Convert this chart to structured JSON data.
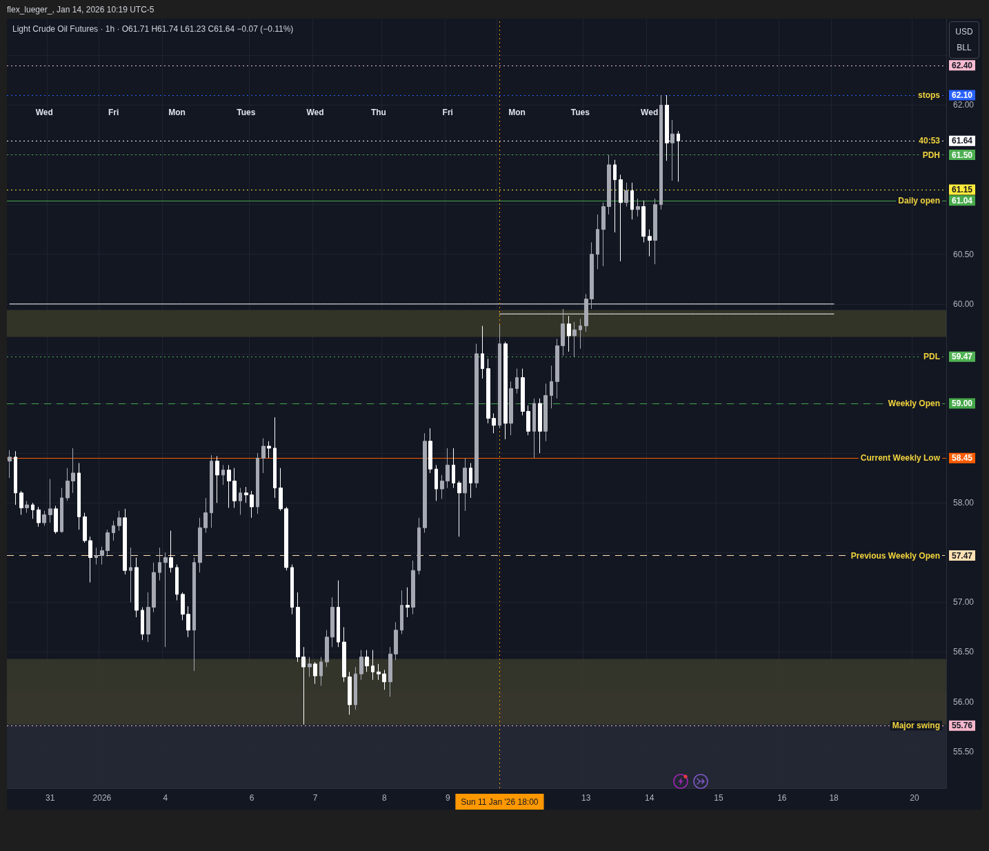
{
  "chart_data": {
    "type": "candlestick",
    "subtitle": "flex_lueger_, Jan 14, 2026 10:19 UTC-5",
    "title": "Light Crude Oil Futures · 1h · O61.71 H61.74 L61.23 C61.64 −0.07 (−0.11%)",
    "ylabel": "USD BLL",
    "annotations": [
      "Wed",
      "Fri",
      "Mon",
      "Tues",
      "Wed",
      "Thu",
      "Fri",
      "Mon",
      "Tues",
      "Wed",
      {
        "text": "stops",
        "y": 62.1
      },
      {
        "text": "40:53",
        "y": 61.64
      },
      {
        "text": "PDH",
        "y": 61.5
      },
      {
        "text": "Daily open",
        "y": 61.04
      },
      {
        "text": "PDL",
        "y": 59.47
      },
      {
        "text": "Weekly Open",
        "y": 59.0
      },
      {
        "text": "Current Weekly Low",
        "y": 58.45
      },
      {
        "text": "Previous Weekly Open",
        "y": 57.47
      },
      {
        "text": "Major swing",
        "y": 55.76
      }
    ],
    "categories": [
      null,
      null,
      null,
      null,
      null,
      null,
      null,
      "31",
      null,
      null,
      null,
      null,
      null,
      null,
      null,
      null,
      "2026",
      null,
      null,
      null,
      null,
      null,
      null,
      null,
      null,
      null,
      null,
      "4",
      null,
      null,
      null,
      null,
      null,
      null,
      null,
      null,
      null,
      null,
      null,
      null,
      null,
      null,
      "6",
      null,
      null,
      null,
      null,
      null,
      null,
      null,
      null,
      null,
      null,
      "7",
      null,
      null,
      null,
      null,
      null,
      null,
      null,
      null,
      null,
      null,
      null,
      "8",
      null,
      null,
      null,
      null,
      null,
      null,
      null,
      null,
      null,
      null,
      "9",
      null,
      null,
      null,
      null,
      null,
      null,
      null,
      null,
      "Sun 11 Jan '26 18:00",
      null,
      null,
      null,
      null,
      null,
      null,
      null,
      null,
      null,
      null,
      null,
      null,
      null,
      null,
      "13",
      null,
      null,
      null,
      null,
      null,
      null,
      null,
      null,
      null,
      null,
      "14",
      null,
      null,
      null,
      null,
      null,
      null,
      null,
      null,
      null,
      null,
      null,
      "15",
      null,
      null,
      null,
      null,
      null,
      null,
      null,
      null,
      null,
      null,
      "16",
      null,
      null,
      null,
      null,
      null,
      null,
      null,
      null,
      "18",
      null,
      null,
      null,
      null,
      null,
      null,
      null,
      null,
      null,
      null,
      null,
      null,
      null,
      "20",
      null,
      null,
      null,
      null,
      null
    ],
    "ohlc": [
      [
        58.42,
        58.53,
        58.25,
        58.46
      ],
      [
        58.46,
        58.52,
        57.98,
        58.1
      ],
      [
        58.1,
        58.12,
        57.88,
        57.95
      ],
      [
        57.95,
        58.02,
        57.9,
        57.98
      ],
      [
        57.98,
        58.0,
        57.84,
        57.93
      ],
      [
        57.93,
        57.96,
        57.76,
        57.8
      ],
      [
        57.8,
        57.92,
        57.77,
        57.88
      ],
      [
        57.88,
        58.24,
        57.8,
        57.94
      ],
      [
        57.94,
        57.97,
        57.69,
        57.71
      ],
      [
        57.71,
        58.15,
        57.7,
        58.05
      ],
      [
        58.05,
        58.35,
        58.02,
        58.22
      ],
      [
        58.22,
        58.55,
        58.1,
        58.3
      ],
      [
        58.3,
        58.4,
        57.73,
        57.86
      ],
      [
        57.86,
        57.9,
        57.6,
        57.62
      ],
      [
        57.62,
        57.66,
        57.2,
        57.45
      ],
      [
        57.45,
        57.55,
        57.38,
        57.47
      ],
      [
        57.47,
        57.56,
        57.38,
        57.52
      ],
      [
        57.52,
        57.73,
        57.46,
        57.7
      ],
      [
        57.7,
        57.82,
        57.62,
        57.77
      ],
      [
        57.77,
        57.92,
        57.72,
        57.85
      ],
      [
        57.85,
        57.94,
        57.28,
        57.32
      ],
      [
        57.32,
        57.55,
        57.0,
        57.35
      ],
      [
        57.35,
        57.45,
        56.85,
        56.92
      ],
      [
        56.92,
        56.95,
        56.62,
        56.68
      ],
      [
        56.68,
        57.1,
        56.6,
        56.95
      ],
      [
        56.95,
        57.4,
        56.9,
        57.3
      ],
      [
        57.3,
        57.55,
        57.22,
        57.4
      ],
      [
        57.4,
        57.5,
        56.55,
        57.45
      ],
      [
        57.45,
        57.72,
        57.3,
        57.35
      ],
      [
        57.35,
        57.38,
        57.02,
        57.08
      ],
      [
        57.08,
        57.1,
        56.82,
        56.88
      ],
      [
        56.88,
        56.96,
        56.65,
        56.72
      ],
      [
        56.72,
        57.45,
        56.31,
        57.4
      ],
      [
        57.4,
        57.85,
        57.3,
        57.75
      ],
      [
        57.75,
        58.05,
        57.7,
        57.9
      ],
      [
        57.9,
        58.48,
        57.75,
        58.42
      ],
      [
        58.42,
        58.47,
        58.0,
        58.28
      ],
      [
        58.28,
        58.38,
        58.18,
        58.33
      ],
      [
        58.33,
        58.38,
        57.95,
        58.22
      ],
      [
        58.22,
        58.35,
        57.95,
        58.02
      ],
      [
        58.02,
        58.15,
        57.88,
        58.1
      ],
      [
        58.1,
        58.16,
        58.0,
        58.08
      ],
      [
        58.08,
        58.12,
        57.85,
        57.96
      ],
      [
        57.96,
        58.5,
        57.89,
        58.45
      ],
      [
        58.45,
        58.65,
        58.3,
        58.57
      ],
      [
        58.57,
        58.62,
        58.45,
        58.55
      ],
      [
        58.55,
        58.86,
        58.05,
        58.15
      ],
      [
        58.15,
        58.35,
        57.92,
        57.94
      ],
      [
        57.94,
        57.96,
        57.32,
        57.35
      ],
      [
        57.35,
        57.38,
        56.88,
        56.95
      ],
      [
        56.95,
        57.1,
        56.4,
        56.45
      ],
      [
        56.45,
        56.55,
        55.77,
        56.35
      ],
      [
        56.35,
        56.45,
        56.25,
        56.38
      ],
      [
        56.38,
        56.4,
        56.18,
        56.26
      ],
      [
        56.26,
        56.45,
        56.16,
        56.4
      ],
      [
        56.4,
        56.72,
        56.35,
        56.65
      ],
      [
        56.65,
        57.05,
        56.55,
        56.95
      ],
      [
        56.95,
        57.22,
        56.55,
        56.6
      ],
      [
        56.6,
        56.75,
        56.2,
        56.25
      ],
      [
        56.25,
        56.3,
        55.87,
        55.97
      ],
      [
        55.97,
        56.35,
        55.92,
        56.28
      ],
      [
        56.28,
        56.52,
        56.22,
        56.45
      ],
      [
        56.45,
        56.52,
        56.3,
        56.36
      ],
      [
        56.36,
        56.52,
        56.22,
        56.3
      ],
      [
        56.3,
        56.38,
        56.22,
        56.28
      ],
      [
        56.28,
        56.32,
        56.12,
        56.2
      ],
      [
        56.2,
        56.55,
        56.05,
        56.48
      ],
      [
        56.48,
        56.8,
        56.42,
        56.72
      ],
      [
        56.72,
        57.12,
        56.68,
        56.97
      ],
      [
        56.97,
        57.15,
        56.85,
        56.95
      ],
      [
        56.95,
        57.42,
        56.88,
        57.32
      ],
      [
        57.32,
        57.85,
        57.28,
        57.75
      ],
      [
        57.75,
        58.7,
        57.7,
        58.62
      ],
      [
        58.62,
        58.75,
        58.3,
        58.34
      ],
      [
        58.34,
        58.38,
        58.02,
        58.14
      ],
      [
        58.14,
        58.28,
        58.04,
        58.22
      ],
      [
        58.22,
        58.55,
        58.15,
        58.38
      ],
      [
        58.38,
        58.55,
        58.15,
        58.2
      ],
      [
        58.2,
        58.22,
        57.66,
        58.1
      ],
      [
        58.1,
        58.45,
        57.92,
        58.35
      ],
      [
        58.35,
        58.4,
        58.05,
        58.2
      ],
      [
        58.2,
        59.6,
        58.15,
        59.5
      ],
      [
        59.5,
        59.78,
        59.25,
        59.35
      ],
      [
        59.35,
        59.45,
        58.8,
        58.85
      ],
      [
        58.85,
        58.9,
        58.7,
        58.78
      ],
      [
        58.78,
        59.79,
        58.75,
        59.6
      ],
      [
        59.6,
        59.62,
        58.64,
        58.8
      ],
      [
        58.8,
        59.22,
        58.68,
        59.15
      ],
      [
        59.15,
        59.35,
        59.1,
        59.26
      ],
      [
        59.26,
        59.35,
        58.88,
        58.92
      ],
      [
        58.92,
        58.98,
        58.68,
        58.72
      ],
      [
        58.72,
        59.05,
        58.45,
        59.0
      ],
      [
        59.0,
        59.05,
        58.5,
        58.72
      ],
      [
        58.72,
        59.2,
        58.62,
        59.08
      ],
      [
        59.08,
        59.38,
        58.95,
        59.22
      ],
      [
        59.22,
        59.65,
        59.05,
        59.58
      ],
      [
        59.58,
        59.95,
        59.48,
        59.8
      ],
      [
        59.8,
        59.88,
        59.52,
        59.68
      ],
      [
        59.68,
        59.82,
        59.47,
        59.74
      ],
      [
        59.74,
        59.85,
        59.55,
        59.78
      ],
      [
        59.78,
        60.1,
        59.72,
        60.05
      ],
      [
        60.05,
        60.62,
        59.95,
        60.5
      ],
      [
        60.5,
        60.9,
        60.35,
        60.75
      ],
      [
        60.75,
        61.02,
        60.38,
        60.98
      ],
      [
        60.98,
        61.5,
        60.9,
        61.4
      ],
      [
        61.4,
        61.45,
        60.72,
        61.25
      ],
      [
        61.25,
        61.3,
        60.43,
        61.02
      ],
      [
        61.02,
        61.22,
        60.98,
        61.14
      ],
      [
        61.14,
        61.22,
        60.85,
        60.95
      ],
      [
        60.95,
        61.06,
        60.88,
        60.98
      ],
      [
        60.98,
        61.04,
        60.62,
        60.68
      ],
      [
        60.68,
        60.75,
        60.48,
        60.64
      ],
      [
        60.64,
        61.06,
        60.4,
        61.0
      ],
      [
        61.0,
        62.1,
        60.95,
        62.0
      ],
      [
        62.0,
        62.1,
        61.44,
        61.62
      ],
      [
        61.62,
        61.85,
        61.24,
        61.71
      ],
      [
        61.71,
        61.74,
        61.23,
        61.64
      ],
      null,
      null,
      null,
      null,
      null,
      null,
      null,
      null,
      null,
      null,
      null,
      null,
      null,
      null,
      null,
      null,
      null,
      null,
      null,
      null,
      null,
      null,
      null,
      null,
      null,
      null,
      null,
      null,
      null,
      null,
      null,
      null,
      null,
      null,
      null,
      null,
      null,
      null,
      null,
      null,
      null,
      null,
      null,
      null,
      null,
      null
    ],
    "colors": [
      "#a6a9b2",
      "#ffffff",
      "#ffffff",
      "#a6a9b2",
      "#ffffff",
      "#ffffff",
      "#a6a9b2",
      "#a6a9b2",
      "#ffffff",
      "#a6a9b2",
      "#a6a9b2",
      "#a6a9b2",
      "#ffffff",
      "#ffffff",
      "#ffffff",
      "#a6a9b2",
      "#a6a9b2",
      "#a6a9b2",
      "#a6a9b2",
      "#a6a9b2",
      "#ffffff",
      "#a6a9b2",
      "#ffffff",
      "#ffffff",
      "#a6a9b2",
      "#a6a9b2",
      "#a6a9b2",
      "#a6a9b2",
      "#ffffff",
      "#ffffff",
      "#ffffff",
      "#ffffff",
      "#a6a9b2",
      "#a6a9b2",
      "#a6a9b2",
      "#a6a9b2",
      "#ffffff",
      "#a6a9b2",
      "#ffffff",
      "#ffffff",
      "#a6a9b2",
      "#ffffff",
      "#ffffff",
      "#a6a9b2",
      "#a6a9b2",
      "#ffffff",
      "#ffffff",
      "#ffffff",
      "#ffffff",
      "#ffffff",
      "#ffffff",
      "#ffffff",
      "#a6a9b2",
      "#ffffff",
      "#a6a9b2",
      "#a6a9b2",
      "#a6a9b2",
      "#ffffff",
      "#ffffff",
      "#ffffff",
      "#a6a9b2",
      "#a6a9b2",
      "#ffffff",
      "#ffffff",
      "#ffffff",
      "#ffffff",
      "#a6a9b2",
      "#a6a9b2",
      "#a6a9b2",
      "#ffffff",
      "#a6a9b2",
      "#a6a9b2",
      "#a6a9b2",
      "#ffffff",
      "#ffffff",
      "#a6a9b2",
      "#a6a9b2",
      "#ffffff",
      "#ffffff",
      "#a6a9b2",
      "#ffffff",
      "#a6a9b2",
      "#ffffff",
      "#ffffff",
      "#ffffff",
      "#a6a9b2",
      "#ffffff",
      "#a6a9b2",
      "#a6a9b2",
      "#ffffff",
      "#ffffff",
      "#a6a9b2",
      "#ffffff",
      "#a6a9b2",
      "#a6a9b2",
      "#a6a9b2",
      "#a6a9b2",
      "#ffffff",
      "#a6a9b2",
      "#a6a9b2",
      "#a6a9b2",
      "#a6a9b2",
      "#a6a9b2",
      "#a6a9b2",
      "#a6a9b2",
      "#ffffff",
      "#ffffff",
      "#a6a9b2",
      "#ffffff",
      "#a6a9b2",
      "#ffffff",
      "#ffffff",
      "#a6a9b2",
      "#a6a9b2",
      "#ffffff",
      "#a6a9b2",
      "#ffffff",
      null,
      null,
      null,
      null,
      null,
      null,
      null,
      null,
      null,
      null,
      null,
      null,
      null,
      null,
      null,
      null,
      null,
      null,
      null,
      null,
      null,
      null,
      null,
      null,
      null,
      null,
      null,
      null,
      null,
      null,
      null,
      null,
      null,
      null,
      null,
      null,
      null,
      null,
      null,
      null,
      null,
      null,
      null,
      null,
      null,
      null
    ],
    "series": [
      {
        "type": "line",
        "color": "#ffffff",
        "marker": "none",
        "values": [
          60.0,
          60.0,
          60.0,
          60.0,
          60.0,
          60.0,
          60.0,
          60.0,
          60.0,
          60.0,
          60.0,
          60.0,
          60.0,
          60.0,
          60.0,
          60.0,
          60.0,
          60.0,
          60.0,
          60.0,
          60.0,
          60.0,
          60.0,
          60.0,
          60.0,
          60.0,
          60.0,
          60.0,
          60.0,
          60.0,
          60.0,
          60.0,
          60.0,
          60.0,
          60.0,
          60.0,
          60.0,
          60.0,
          60.0,
          60.0,
          60.0,
          60.0,
          60.0,
          60.0,
          60.0,
          60.0,
          60.0,
          60.0,
          60.0,
          60.0,
          60.0,
          60.0,
          60.0,
          60.0,
          60.0,
          60.0,
          60.0,
          60.0,
          60.0,
          60.0,
          60.0,
          60.0,
          60.0,
          60.0,
          60.0,
          60.0,
          60.0,
          60.0,
          60.0,
          60.0,
          60.0,
          60.0,
          60.0,
          60.0,
          60.0,
          60.0,
          60.0,
          60.0,
          60.0,
          60.0,
          60.0,
          60.0,
          60.0,
          60.0,
          60.0,
          60.0,
          60.0,
          60.0,
          60.0,
          60.0,
          60.0,
          60.0,
          60.0,
          60.0,
          60.0,
          60.0,
          60.0,
          60.0,
          60.0,
          60.0,
          60.0,
          60.0,
          60.0,
          60.0,
          60.0,
          60.0,
          60.0,
          60.0,
          60.0,
          60.0,
          60.0,
          60.0,
          60.0,
          60.0,
          60.0,
          60.0,
          60.0,
          60.0,
          60.0,
          60.0,
          60.0,
          60.0,
          60.0,
          60.0,
          60.0,
          60.0,
          60.0,
          60.0,
          60.0,
          60.0,
          60.0,
          60.0,
          60.0,
          60.0,
          60.0,
          60.0,
          60.0,
          60.0,
          60.0,
          60.0,
          60.0,
          60.0,
          60.0,
          60.0,
          null,
          null,
          null,
          null,
          null,
          null,
          null,
          null,
          null,
          null,
          null,
          null,
          null,
          null,
          null,
          null,
          null,
          null,
          null
        ]
      },
      {
        "type": "line",
        "color": "#fefefe",
        "marker": "none",
        "values": [
          null,
          null,
          null,
          null,
          null,
          null,
          null,
          null,
          null,
          null,
          null,
          null,
          null,
          null,
          null,
          null,
          null,
          null,
          null,
          null,
          null,
          null,
          null,
          null,
          null,
          null,
          null,
          null,
          null,
          null,
          null,
          null,
          null,
          null,
          null,
          null,
          null,
          null,
          null,
          null,
          null,
          null,
          null,
          null,
          null,
          null,
          null,
          null,
          null,
          null,
          null,
          null,
          null,
          null,
          null,
          null,
          null,
          null,
          null,
          null,
          null,
          null,
          null,
          null,
          null,
          null,
          null,
          null,
          null,
          null,
          null,
          null,
          null,
          null,
          null,
          null,
          null,
          null,
          null,
          null,
          null,
          null,
          null,
          null,
          null,
          59.9,
          59.9,
          59.9,
          59.9,
          59.9,
          59.9,
          59.9,
          59.9,
          59.9,
          59.9,
          59.9,
          59.9,
          59.9,
          59.9,
          59.9,
          59.9,
          59.9,
          59.9,
          59.9,
          59.9,
          59.9,
          59.9,
          59.9,
          59.9,
          59.9,
          59.9,
          59.9,
          59.9,
          59.9,
          59.9,
          59.9,
          59.9,
          59.9,
          59.9,
          59.9,
          59.9,
          59.9,
          59.9,
          59.9,
          59.9,
          59.9,
          59.9,
          59.9,
          59.9,
          59.9,
          59.9,
          59.9,
          59.9,
          59.9,
          59.9,
          59.9,
          59.9,
          59.9,
          59.9,
          59.9,
          59.9,
          59.9,
          59.9,
          59.9,
          null,
          null,
          null,
          null,
          null,
          null,
          null,
          null,
          null,
          null,
          null,
          null,
          null,
          null,
          null,
          null,
          null,
          null,
          null
        ]
      }
    ],
    "ylim": [
      55.13,
      62.87
    ],
    "yticks": [
      {
        "value": 55.5,
        "label": "55.50"
      },
      {
        "value": 56,
        "label": "56.00"
      },
      {
        "value": 56.5,
        "label": "56.50"
      },
      {
        "value": 57,
        "label": "57.00"
      },
      {
        "value": 57.5,
        "label": null
      },
      {
        "value": 58,
        "label": "58.00"
      },
      {
        "value": 58.5,
        "label": null
      },
      {
        "value": 59,
        "label": null
      },
      {
        "value": 59.5,
        "label": null
      },
      {
        "value": 60,
        "label": "60.00"
      },
      {
        "value": 60.5,
        "label": "60.50"
      },
      {
        "value": 61,
        "label": null
      },
      {
        "value": 61.5,
        "label": null
      },
      {
        "value": 62,
        "label": "62.00"
      },
      {
        "value": 62.5,
        "label": null
      }
    ],
    "ref_lines": [
      {
        "axis": "y",
        "value": 62.4,
        "label": "62.40",
        "color": "#f8bbd0",
        "line_style": "dotted"
      },
      {
        "axis": "y",
        "value": 62.1,
        "label": "62.10",
        "color": "#2962ff",
        "line_style": "dotted"
      },
      {
        "axis": "y",
        "value": 61.64,
        "label": "61.64",
        "color": "#ffffff",
        "line_style": "dotted"
      },
      {
        "axis": "y",
        "value": 61.5,
        "label": "61.50",
        "color": "#4caf50",
        "line_style": "dotted"
      },
      {
        "axis": "y",
        "value": 61.15,
        "label": "61.15",
        "color": "#ffeb3b",
        "line_style": "dotted"
      },
      {
        "axis": "y",
        "value": 61.04,
        "label": "61.04",
        "color": "#48ab4c",
        "line_style": "solid"
      },
      {
        "axis": "y",
        "value": 59.47,
        "label": "59.47",
        "color": "#50b354",
        "line_style": "dotted"
      },
      {
        "axis": "y",
        "value": 59.0,
        "label": "59.00",
        "color": "#45a849",
        "line_style": "dashed"
      },
      {
        "axis": "y",
        "value": 58.45,
        "label": "58.45",
        "color": "#ff5d00",
        "line_style": "solid"
      },
      {
        "axis": "y",
        "value": 57.47,
        "label": "57.47",
        "color": "#ffe0b2",
        "line_style": "dashed"
      },
      {
        "axis": "y",
        "value": 55.76,
        "label": "55.76",
        "color": "#f5b7cb",
        "line_style": "dotted"
      },
      {
        "axis": "x",
        "value": "Sun 11 Jan '26 18:00",
        "color": "#ff9800",
        "line_style": "dotted"
      }
    ],
    "bands": [
      {
        "axis": "y",
        "from": 59.67,
        "to": 59.94,
        "color": "#3a3929"
      },
      {
        "axis": "y",
        "from": 55.13,
        "to": 56.1,
        "color": "#262a36"
      },
      {
        "axis": "y",
        "from": 55.77,
        "to": 56.43,
        "color": "#3a3a2b"
      }
    ],
    "grid": true
  }
}
